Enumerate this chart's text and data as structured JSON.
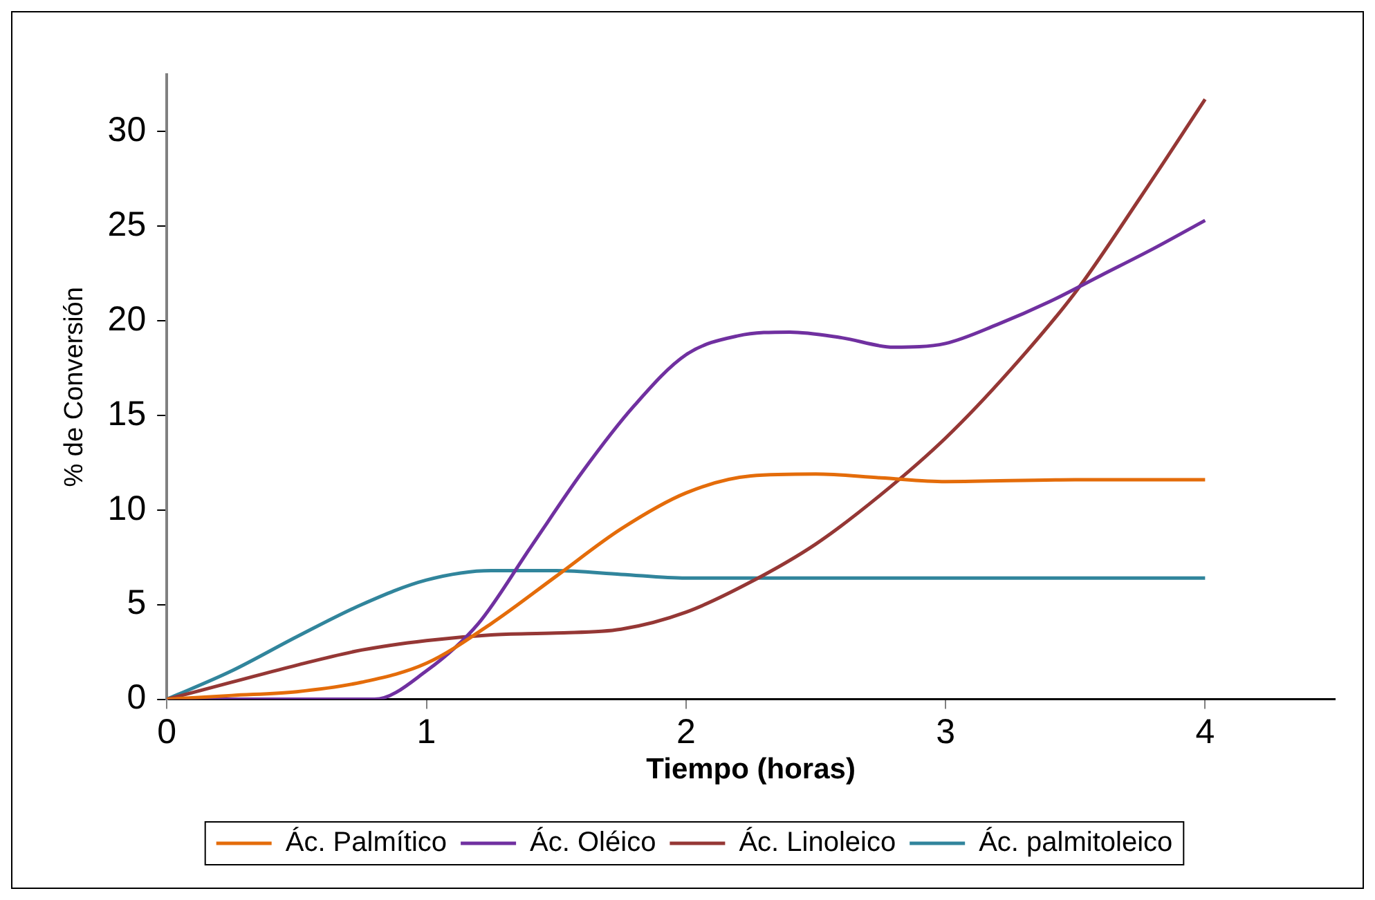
{
  "chart_data": {
    "type": "line",
    "xlabel": "Tiempo (horas)",
    "ylabel": "% de Conversión",
    "xlim": [
      0,
      4.5
    ],
    "xticks": [
      0,
      1,
      2,
      3,
      4
    ],
    "ylim": [
      0,
      33
    ],
    "yticks": [
      0,
      5,
      10,
      15,
      20,
      25,
      30
    ],
    "grid": false,
    "legend": "bottom",
    "marker": "none",
    "line_style": "solid",
    "series": [
      {
        "name": "Ác. Palmítico",
        "color": "#e46c0a",
        "x": [
          0,
          0.25,
          0.5,
          0.75,
          1,
          1.25,
          1.5,
          1.75,
          2,
          2.25,
          2.5,
          2.75,
          3,
          3.5,
          4
        ],
        "values": [
          0,
          0.2,
          0.4,
          0.9,
          1.9,
          4,
          6.5,
          9,
          10.9,
          11.8,
          11.9,
          11.7,
          11.5,
          11.6,
          11.6
        ]
      },
      {
        "name": "Ác. Oléico",
        "color": "#7030a0",
        "x": [
          0,
          0.8,
          1,
          1.2,
          1.4,
          1.6,
          1.8,
          2,
          2.2,
          2.4,
          2.6,
          2.8,
          3,
          3.2,
          3.4,
          3.6,
          3.8,
          4
        ],
        "values": [
          0,
          0,
          1.5,
          4,
          8,
          12,
          15.5,
          18.2,
          19.2,
          19.4,
          19.1,
          18.6,
          18.8,
          19.8,
          21,
          22.4,
          23.8,
          25.3
        ]
      },
      {
        "name": "Ác. Linoleico",
        "color": "#953735",
        "x": [
          0,
          0.25,
          0.5,
          0.75,
          1,
          1.25,
          1.5,
          1.75,
          2,
          2.25,
          2.5,
          2.75,
          3,
          3.25,
          3.5,
          3.75,
          4
        ],
        "values": [
          0,
          0.9,
          1.8,
          2.6,
          3.1,
          3.4,
          3.5,
          3.7,
          4.6,
          6.2,
          8.2,
          10.8,
          13.8,
          17.4,
          21.5,
          26.5,
          31.7
        ]
      },
      {
        "name": "Ác. palmitoleico",
        "color": "#31859c",
        "x": [
          0,
          0.25,
          0.5,
          0.75,
          1,
          1.25,
          1.5,
          1.75,
          2,
          3,
          4
        ],
        "values": [
          0,
          1.5,
          3.3,
          5,
          6.3,
          6.8,
          6.8,
          6.6,
          6.4,
          6.4,
          6.4
        ]
      }
    ]
  }
}
